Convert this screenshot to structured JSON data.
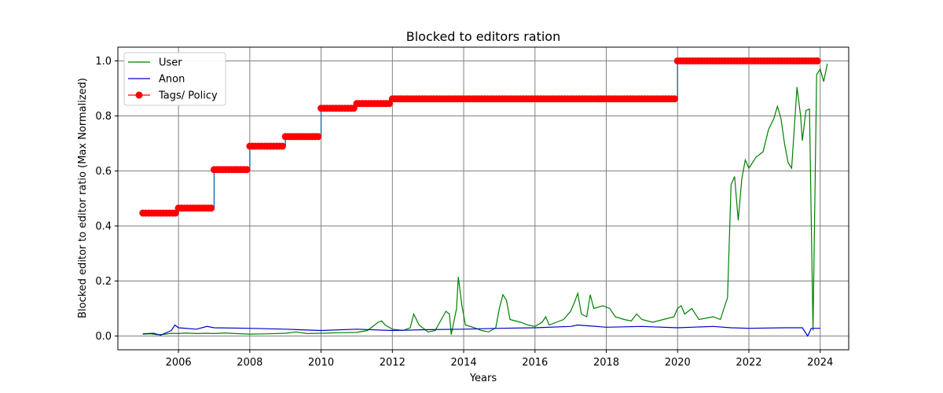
{
  "chart_data": {
    "type": "line",
    "title": "Blocked to editors ration",
    "xlabel": "Years",
    "ylabel": "Blocked editor to editor ratio (Max Normalized)",
    "xlim": [
      2004.3,
      2024.8
    ],
    "ylim": [
      -0.05,
      1.05
    ],
    "xticks": [
      2006,
      2008,
      2010,
      2012,
      2014,
      2016,
      2018,
      2020,
      2022,
      2024
    ],
    "xtick_labels": [
      "2006",
      "2008",
      "2010",
      "2012",
      "2014",
      "2016",
      "2018",
      "2020",
      "2022",
      "2024"
    ],
    "yticks": [
      0.0,
      0.2,
      0.4,
      0.6,
      0.8,
      1.0
    ],
    "ytick_labels": [
      "0.0",
      "0.2",
      "0.4",
      "0.6",
      "0.8",
      "1.0"
    ],
    "grid": true,
    "legend_position": "top-left",
    "legend": [
      "User",
      "Anon",
      "Tags/ Policy"
    ],
    "series": [
      {
        "name": "User",
        "color": "#008000",
        "marker": "none",
        "points": [
          [
            2005.0,
            0.007
          ],
          [
            2005.2,
            0.008
          ],
          [
            2005.4,
            0.005
          ],
          [
            2005.6,
            0.006
          ],
          [
            2005.8,
            0.01
          ],
          [
            2006.0,
            0.009
          ],
          [
            2006.2,
            0.011
          ],
          [
            2006.5,
            0.009
          ],
          [
            2006.8,
            0.01
          ],
          [
            2007.0,
            0.009
          ],
          [
            2007.3,
            0.011
          ],
          [
            2007.6,
            0.009
          ],
          [
            2008.0,
            0.007
          ],
          [
            2008.5,
            0.008
          ],
          [
            2009.0,
            0.01
          ],
          [
            2009.3,
            0.015
          ],
          [
            2009.6,
            0.009
          ],
          [
            2010.0,
            0.01
          ],
          [
            2010.5,
            0.012
          ],
          [
            2011.0,
            0.013
          ],
          [
            2011.3,
            0.02
          ],
          [
            2011.6,
            0.05
          ],
          [
            2011.7,
            0.055
          ],
          [
            2011.8,
            0.04
          ],
          [
            2012.0,
            0.025
          ],
          [
            2012.3,
            0.02
          ],
          [
            2012.5,
            0.03
          ],
          [
            2012.6,
            0.08
          ],
          [
            2012.75,
            0.04
          ],
          [
            2013.0,
            0.015
          ],
          [
            2013.2,
            0.02
          ],
          [
            2013.5,
            0.09
          ],
          [
            2013.6,
            0.08
          ],
          [
            2013.65,
            0.005
          ],
          [
            2013.8,
            0.1
          ],
          [
            2013.85,
            0.215
          ],
          [
            2013.95,
            0.11
          ],
          [
            2014.05,
            0.04
          ],
          [
            2014.3,
            0.03
          ],
          [
            2014.5,
            0.02
          ],
          [
            2014.7,
            0.015
          ],
          [
            2014.9,
            0.03
          ],
          [
            2015.0,
            0.1
          ],
          [
            2015.1,
            0.15
          ],
          [
            2015.2,
            0.13
          ],
          [
            2015.3,
            0.06
          ],
          [
            2015.6,
            0.05
          ],
          [
            2015.8,
            0.04
          ],
          [
            2016.0,
            0.035
          ],
          [
            2016.2,
            0.05
          ],
          [
            2016.3,
            0.07
          ],
          [
            2016.4,
            0.04
          ],
          [
            2016.6,
            0.05
          ],
          [
            2016.8,
            0.06
          ],
          [
            2017.0,
            0.09
          ],
          [
            2017.1,
            0.12
          ],
          [
            2017.2,
            0.155
          ],
          [
            2017.3,
            0.08
          ],
          [
            2017.45,
            0.07
          ],
          [
            2017.55,
            0.15
          ],
          [
            2017.65,
            0.1
          ],
          [
            2017.9,
            0.11
          ],
          [
            2018.1,
            0.1
          ],
          [
            2018.25,
            0.07
          ],
          [
            2018.5,
            0.06
          ],
          [
            2018.7,
            0.055
          ],
          [
            2018.85,
            0.08
          ],
          [
            2019.0,
            0.06
          ],
          [
            2019.3,
            0.05
          ],
          [
            2019.6,
            0.06
          ],
          [
            2019.9,
            0.07
          ],
          [
            2020.0,
            0.1
          ],
          [
            2020.1,
            0.11
          ],
          [
            2020.2,
            0.08
          ],
          [
            2020.4,
            0.1
          ],
          [
            2020.6,
            0.06
          ],
          [
            2021.0,
            0.07
          ],
          [
            2021.2,
            0.06
          ],
          [
            2021.4,
            0.14
          ],
          [
            2021.5,
            0.55
          ],
          [
            2021.6,
            0.58
          ],
          [
            2021.7,
            0.42
          ],
          [
            2021.8,
            0.57
          ],
          [
            2021.9,
            0.64
          ],
          [
            2022.0,
            0.61
          ],
          [
            2022.2,
            0.65
          ],
          [
            2022.4,
            0.67
          ],
          [
            2022.55,
            0.75
          ],
          [
            2022.7,
            0.79
          ],
          [
            2022.8,
            0.835
          ],
          [
            2022.9,
            0.79
          ],
          [
            2023.0,
            0.7
          ],
          [
            2023.1,
            0.63
          ],
          [
            2023.2,
            0.61
          ],
          [
            2023.35,
            0.905
          ],
          [
            2023.45,
            0.8
          ],
          [
            2023.5,
            0.71
          ],
          [
            2023.6,
            0.82
          ],
          [
            2023.7,
            0.825
          ],
          [
            2023.8,
            0.02
          ],
          [
            2023.9,
            0.95
          ],
          [
            2024.0,
            0.97
          ],
          [
            2024.1,
            0.925
          ],
          [
            2024.2,
            0.99
          ]
        ]
      },
      {
        "name": "Anon",
        "color": "#0000cc",
        "marker": "none",
        "points": [
          [
            2005.0,
            0.008
          ],
          [
            2005.3,
            0.01
          ],
          [
            2005.5,
            0.003
          ],
          [
            2005.8,
            0.02
          ],
          [
            2005.9,
            0.04
          ],
          [
            2006.0,
            0.03
          ],
          [
            2006.5,
            0.025
          ],
          [
            2006.8,
            0.035
          ],
          [
            2007.0,
            0.03
          ],
          [
            2008.0,
            0.028
          ],
          [
            2009.0,
            0.025
          ],
          [
            2010.0,
            0.02
          ],
          [
            2011.0,
            0.025
          ],
          [
            2012.0,
            0.02
          ],
          [
            2013.0,
            0.023
          ],
          [
            2014.0,
            0.025
          ],
          [
            2015.0,
            0.028
          ],
          [
            2016.0,
            0.03
          ],
          [
            2017.0,
            0.035
          ],
          [
            2017.2,
            0.04
          ],
          [
            2018.0,
            0.032
          ],
          [
            2019.0,
            0.035
          ],
          [
            2020.0,
            0.03
          ],
          [
            2021.0,
            0.035
          ],
          [
            2021.5,
            0.03
          ],
          [
            2022.0,
            0.028
          ],
          [
            2023.0,
            0.03
          ],
          [
            2023.5,
            0.03
          ],
          [
            2023.65,
            0.0
          ],
          [
            2023.75,
            0.028
          ],
          [
            2024.0,
            0.028
          ]
        ]
      },
      {
        "name": "Tags/ Policy",
        "color": "#ff0000",
        "line_color": "#1f77b4",
        "marker": "circle",
        "steps": [
          [
            2005.0,
            2006.0,
            0.447
          ],
          [
            2006.0,
            2007.0,
            0.465
          ],
          [
            2007.0,
            2008.0,
            0.605
          ],
          [
            2008.0,
            2009.0,
            0.69
          ],
          [
            2009.0,
            2010.0,
            0.725
          ],
          [
            2010.0,
            2011.0,
            0.828
          ],
          [
            2011.0,
            2012.0,
            0.845
          ],
          [
            2012.0,
            2020.0,
            0.862
          ],
          [
            2020.0,
            2024.0,
            1.0
          ]
        ]
      }
    ]
  }
}
